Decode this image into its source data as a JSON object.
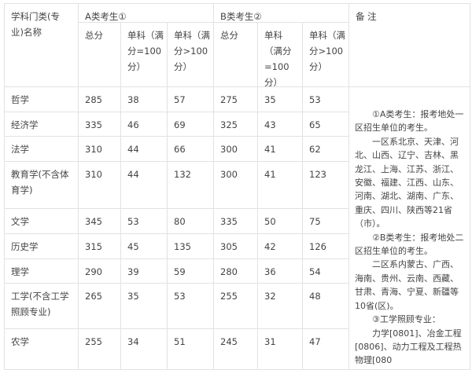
{
  "header": {
    "subject": "学科门类(专业)名称",
    "group_a": "A类考生①",
    "group_b": "B类考生②",
    "remarks": "备 注",
    "a_total": "总分",
    "a_single_100": "单科（满分=100分）",
    "a_single_over100": "单科（满分>100分）",
    "b_total": "总分",
    "b_single_100": "单科（满分=100分）",
    "b_single_over100": "单科（满分>100分）"
  },
  "rows": [
    {
      "name": "哲学",
      "values": [
        "285",
        "38",
        "57",
        "275",
        "35",
        "53"
      ]
    },
    {
      "name": "经济学",
      "values": [
        "335",
        "46",
        "69",
        "325",
        "43",
        "65"
      ]
    },
    {
      "name": "法学",
      "values": [
        "310",
        "44",
        "66",
        "300",
        "41",
        "62"
      ]
    },
    {
      "name": "教育学(不含体育学)",
      "values": [
        "310",
        "44",
        "132",
        "300",
        "41",
        "123"
      ]
    },
    {
      "name": "文学",
      "values": [
        "345",
        "53",
        "80",
        "335",
        "50",
        "75"
      ]
    },
    {
      "name": "历史学",
      "values": [
        "315",
        "45",
        "135",
        "305",
        "42",
        "126"
      ]
    },
    {
      "name": "理学",
      "values": [
        "290",
        "39",
        "59",
        "280",
        "36",
        "54"
      ]
    },
    {
      "name": "工学(不含工学照顾专业)",
      "values": [
        "265",
        "35",
        "53",
        "255",
        "32",
        "48"
      ]
    },
    {
      "name": "农学",
      "values": [
        "255",
        "34",
        "51",
        "245",
        "31",
        "47"
      ]
    }
  ],
  "notes": [
    "①A类考生：报考地处一区招生单位的考生。",
    "一区系北京、天津、河北、山西、辽宁、吉林、黑龙江、上海、江苏、浙江、安徽、福建、江西、山东、河南、湖北、湖南、广东、重庆、四川、陕西等21省（市）。",
    "②B类考生：报考地处二区招生单位的考生。",
    "二区系内蒙古、广西、海南、贵州、云南、西藏、甘肃、青海、宁夏、新疆等10省(区)。",
    "③工学照顾专业：",
    "力学[0801]、冶金工程[0806]、动力工程及工程热物理[080"
  ]
}
